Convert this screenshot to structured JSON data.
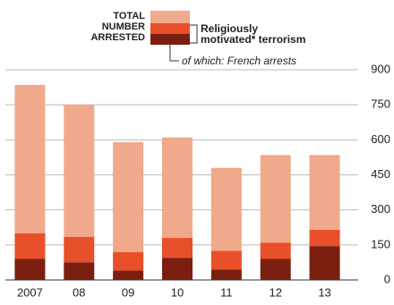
{
  "chart_data": {
    "type": "stacked_bar",
    "categories": [
      "2007",
      "08",
      "09",
      "10",
      "11",
      "12",
      "13"
    ],
    "series": [
      {
        "name": "TOTAL\nNUMBER\nARRESTED",
        "color": "#f0a98a",
        "values": [
          635,
          565,
          470,
          430,
          355,
          375,
          320
        ]
      },
      {
        "name": "Religiously\nmotivated* terrorism",
        "color": "#e8502a",
        "values": [
          110,
          110,
          80,
          85,
          80,
          70,
          70
        ]
      },
      {
        "name": "of which: French arrests",
        "color": "#7a1f0f",
        "values": [
          90,
          75,
          40,
          95,
          45,
          90,
          145
        ]
      }
    ],
    "ylim": [
      0,
      900
    ],
    "yticks": [
      0,
      150,
      300,
      450,
      600,
      750,
      900
    ],
    "grid": true
  }
}
